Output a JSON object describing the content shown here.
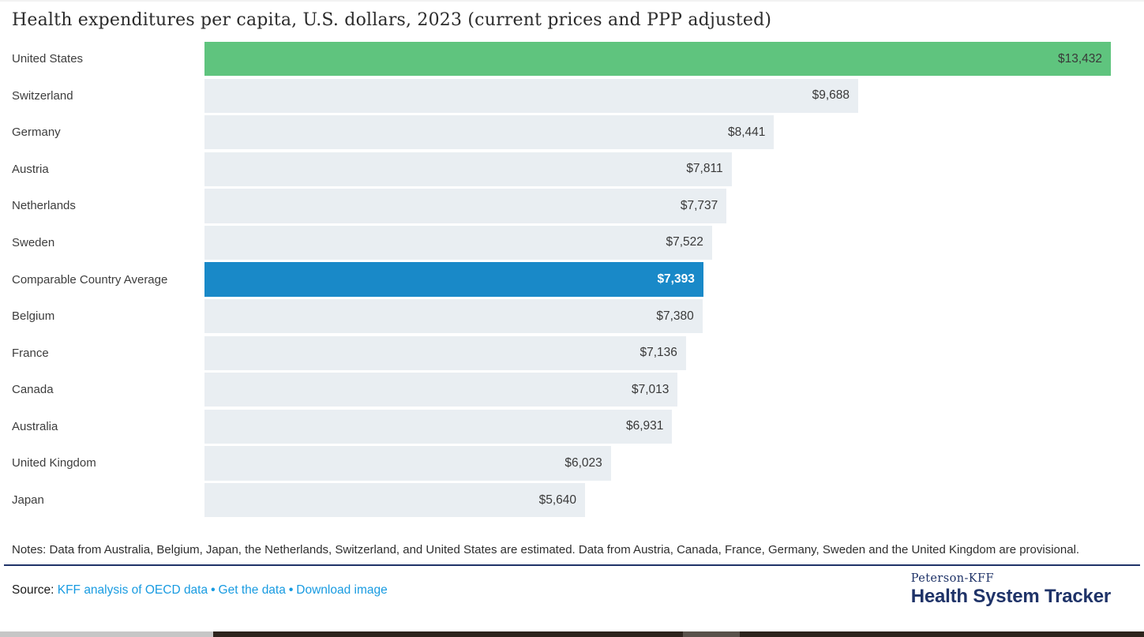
{
  "title": "Health expenditures per capita, U.S. dollars, 2023 (current prices and PPP adjusted)",
  "chart_data": {
    "type": "bar",
    "orientation": "horizontal",
    "title": "Health expenditures per capita, U.S. dollars, 2023 (current prices and PPP adjusted)",
    "xlim": [
      0,
      13432
    ],
    "value_labels_position": "inside-end",
    "grid": false,
    "legend": false,
    "categories": [
      "United States",
      "Switzerland",
      "Germany",
      "Austria",
      "Netherlands",
      "Sweden",
      "Comparable Country Average",
      "Belgium",
      "France",
      "Canada",
      "Australia",
      "United Kingdom",
      "Japan"
    ],
    "values": [
      13432,
      9688,
      8441,
      7811,
      7737,
      7522,
      7393,
      7380,
      7136,
      7013,
      6931,
      6023,
      5640
    ],
    "display_values": [
      "$13,432",
      "$9,688",
      "$8,441",
      "$7,811",
      "$7,737",
      "$7,522",
      "$7,393",
      "$7,380",
      "$7,136",
      "$7,013",
      "$6,931",
      "$6,023",
      "$5,640"
    ],
    "bar_styles": [
      "us",
      "default",
      "default",
      "default",
      "default",
      "default",
      "average",
      "default",
      "default",
      "default",
      "default",
      "default",
      "default"
    ]
  },
  "colors": {
    "bar_default": "#e9eef2",
    "bar_us": "#5fc47e",
    "bar_average": "#1989c8",
    "value_text": "#393939",
    "value_text_on_average": "#ffffff",
    "link_blue": "#189be1",
    "brand_navy": "#1f3368"
  },
  "notes": "Notes: Data from Australia, Belgium, Japan, the Netherlands, Switzerland, and United States are estimated. Data from Austria, Canada, France, Germany, Sweden and the United Kingdom are provisional.",
  "source": {
    "prefix": "Source: ",
    "separator": "•",
    "links": [
      {
        "label": "KFF analysis of OECD data"
      },
      {
        "label": "Get the data"
      },
      {
        "label": "Download image"
      }
    ]
  },
  "logo": {
    "top": "Peterson-KFF",
    "bottom": "Health System Tracker"
  }
}
